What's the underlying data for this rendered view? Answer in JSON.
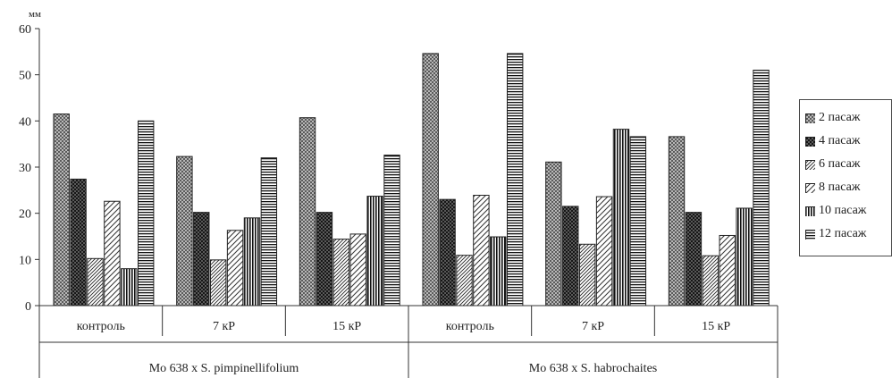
{
  "chart_data": {
    "type": "bar",
    "ylabel": "мм",
    "ylim": [
      0,
      60
    ],
    "yticks": [
      0,
      10,
      20,
      30,
      40,
      50,
      60
    ],
    "grid": false,
    "legend_position": "right",
    "groups": [
      {
        "label": "Mo 638 x S. pimpinellifolium",
        "categories": [
          "контроль",
          "7 кР",
          "15 кР"
        ]
      },
      {
        "label": "Mo 638 x S. habrochaites",
        "categories": [
          "контроль",
          "7 кР",
          "15 кР"
        ]
      }
    ],
    "categories": [
      "контроль",
      "7 кР",
      "15 кР",
      "контроль",
      "7 кР",
      "15 кР"
    ],
    "series": [
      {
        "name": "2 пасаж",
        "pattern": "crosshatch-fine",
        "values": [
          41.5,
          32.3,
          40.7,
          54.6,
          31.1,
          36.6
        ]
      },
      {
        "name": "4 пасаж",
        "pattern": "crosshatch-dark",
        "values": [
          27.4,
          20.2,
          20.2,
          23.0,
          21.5,
          20.2
        ]
      },
      {
        "name": "6 пасаж",
        "pattern": "diagonal-dense",
        "values": [
          10.2,
          9.9,
          14.4,
          10.9,
          13.3,
          10.8
        ]
      },
      {
        "name": "8 пасаж",
        "pattern": "diagonal-sparse",
        "values": [
          22.6,
          16.3,
          15.5,
          23.9,
          23.6,
          15.2
        ]
      },
      {
        "name": "10 пасаж",
        "pattern": "vertical",
        "values": [
          8.0,
          19.0,
          23.7,
          14.9,
          38.2,
          21.1
        ]
      },
      {
        "name": "12 пасаж",
        "pattern": "horizontal",
        "values": [
          40.0,
          32.0,
          32.6,
          54.6,
          36.6,
          51.0
        ]
      }
    ]
  }
}
